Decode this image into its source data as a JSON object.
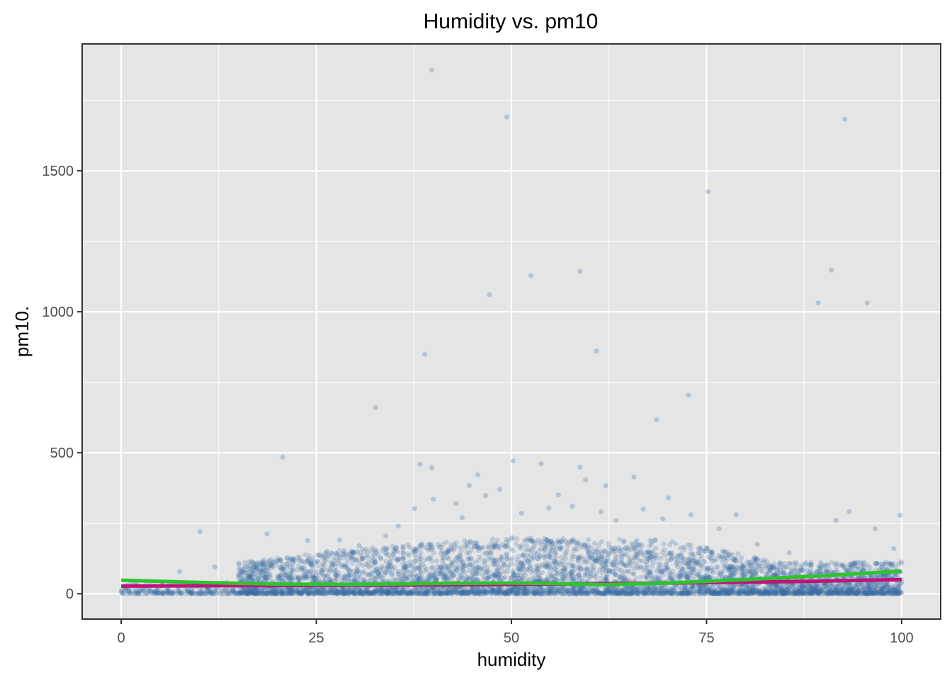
{
  "chart_data": {
    "type": "scatter",
    "title": "Humidity vs. pm10",
    "xlabel": "humidity",
    "ylabel": "pm10.",
    "xlim": [
      -5,
      105
    ],
    "ylim": [
      -90,
      1950
    ],
    "x_ticks": [
      0,
      25,
      50,
      75,
      100
    ],
    "y_ticks": [
      0,
      500,
      1000,
      1500
    ],
    "x_tick_labels": [
      "0",
      "25",
      "50",
      "75",
      "100"
    ],
    "y_tick_labels": [
      "0",
      "500",
      "1000",
      "1500"
    ],
    "grid": true,
    "point_color": "#3a6ea5",
    "point_opacity": 0.22,
    "panel_background": "#e5e5e5",
    "points": [
      {
        "x": 39.8,
        "y": 1857
      },
      {
        "x": 49.4,
        "y": 1691
      },
      {
        "x": 92.7,
        "y": 1683
      },
      {
        "x": 75.2,
        "y": 1426
      },
      {
        "x": 91.0,
        "y": 1148
      },
      {
        "x": 58.8,
        "y": 1143
      },
      {
        "x": 52.5,
        "y": 1128
      },
      {
        "x": 47.2,
        "y": 1061
      },
      {
        "x": 89.3,
        "y": 1031
      },
      {
        "x": 95.6,
        "y": 1031
      },
      {
        "x": 60.9,
        "y": 861
      },
      {
        "x": 38.9,
        "y": 849
      },
      {
        "x": 72.7,
        "y": 704
      },
      {
        "x": 32.6,
        "y": 660
      },
      {
        "x": 68.6,
        "y": 617
      },
      {
        "x": 20.7,
        "y": 484
      },
      {
        "x": 50.2,
        "y": 471
      },
      {
        "x": 38.3,
        "y": 459
      },
      {
        "x": 53.8,
        "y": 461
      },
      {
        "x": 39.8,
        "y": 447
      },
      {
        "x": 58.8,
        "y": 449
      },
      {
        "x": 45.7,
        "y": 422
      },
      {
        "x": 65.7,
        "y": 414
      },
      {
        "x": 59.5,
        "y": 404
      },
      {
        "x": 44.6,
        "y": 384
      },
      {
        "x": 62.1,
        "y": 383
      },
      {
        "x": 48.5,
        "y": 370
      },
      {
        "x": 70.1,
        "y": 340
      },
      {
        "x": 40.0,
        "y": 335
      },
      {
        "x": 46.7,
        "y": 348
      },
      {
        "x": 37.6,
        "y": 302
      },
      {
        "x": 54.8,
        "y": 304
      },
      {
        "x": 93.3,
        "y": 291
      },
      {
        "x": 78.8,
        "y": 280
      },
      {
        "x": 99.8,
        "y": 278
      },
      {
        "x": 91.6,
        "y": 260
      },
      {
        "x": 96.6,
        "y": 230
      },
      {
        "x": 10.1,
        "y": 220
      },
      {
        "x": 18.7,
        "y": 212
      },
      {
        "x": 85.6,
        "y": 145
      },
      {
        "x": 99.0,
        "y": 160
      },
      {
        "x": 7.5,
        "y": 78
      },
      {
        "x": 12.0,
        "y": 95
      },
      {
        "x": 23.9,
        "y": 188
      },
      {
        "x": 35.5,
        "y": 240
      },
      {
        "x": 42.9,
        "y": 320
      },
      {
        "x": 66.9,
        "y": 300
      },
      {
        "x": 73.0,
        "y": 280
      },
      {
        "x": 81.5,
        "y": 175
      },
      {
        "x": 28.0,
        "y": 190
      },
      {
        "x": 56.0,
        "y": 350
      },
      {
        "x": 63.4,
        "y": 260
      },
      {
        "x": 33.9,
        "y": 205
      },
      {
        "x": 87.7,
        "y": 110
      },
      {
        "x": 30.5,
        "y": 170
      },
      {
        "x": 26.4,
        "y": 150
      },
      {
        "x": 76.6,
        "y": 230
      },
      {
        "x": 51.3,
        "y": 285
      },
      {
        "x": 43.7,
        "y": 270
      },
      {
        "x": 69.4,
        "y": 265
      },
      {
        "x": 61.5,
        "y": 290
      },
      {
        "x": 57.8,
        "y": 310
      }
    ],
    "dense_band": {
      "x_range": [
        0,
        100
      ],
      "description_values": [
        {
          "x": 15,
          "lower": 0,
          "upper": 110
        },
        {
          "x": 30,
          "lower": 0,
          "upper": 160
        },
        {
          "x": 50,
          "lower": 0,
          "upper": 200
        },
        {
          "x": 70,
          "lower": 0,
          "upper": 190
        },
        {
          "x": 85,
          "lower": 0,
          "upper": 110
        },
        {
          "x": 100,
          "lower": 0,
          "upper": 115
        }
      ]
    },
    "series": [
      {
        "color": "#c1127a",
        "x": [
          0,
          10,
          20,
          30,
          40,
          50,
          60,
          70,
          80,
          90,
          100
        ],
        "y": [
          27,
          28,
          29,
          30,
          31,
          33,
          35,
          38,
          41,
          45,
          50
        ]
      },
      {
        "color": "#2ec42e",
        "x": [
          0,
          10,
          20,
          30,
          40,
          50,
          55,
          62,
          70,
          80,
          90,
          100
        ],
        "y": [
          48,
          40,
          34,
          33,
          36,
          38,
          36,
          32,
          38,
          50,
          64,
          80
        ]
      }
    ]
  }
}
